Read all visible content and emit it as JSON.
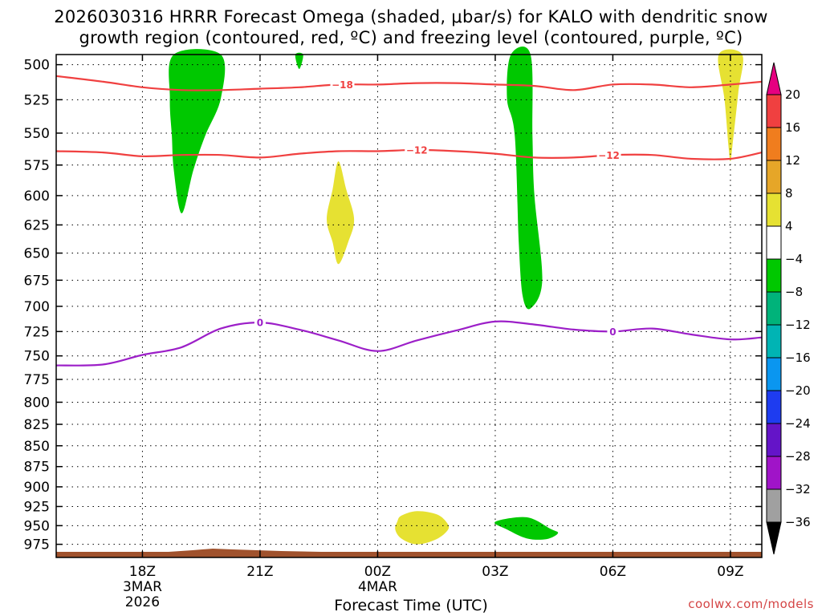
{
  "title_line1": "2026030316 HRRR Forecast Omega (shaded, μbar/s) for KALO with dendritic snow",
  "title_line2": "growth region (contoured, red, ºC) and freezing level (contoured, purple, ºC)",
  "credit": "coolwx.com/models",
  "chart_data": {
    "type": "time-height cross section",
    "xlabel": "Forecast Time (UTC)",
    "x_ticks": [
      {
        "h": 2,
        "labels": [
          "18Z",
          "3MAR",
          "2026"
        ]
      },
      {
        "h": 5,
        "labels": [
          "21Z"
        ]
      },
      {
        "h": 8,
        "labels": [
          "00Z",
          "4MAR"
        ]
      },
      {
        "h": 11,
        "labels": [
          "03Z"
        ]
      },
      {
        "h": 14,
        "labels": [
          "06Z"
        ]
      },
      {
        "h": 17,
        "labels": [
          "09Z"
        ]
      }
    ],
    "xlim": [
      -0.2,
      17.8
    ],
    "ylim_hPa": [
      493,
      993
    ],
    "y_ticks": [
      500,
      525,
      550,
      575,
      600,
      625,
      650,
      675,
      700,
      725,
      750,
      775,
      800,
      825,
      850,
      875,
      900,
      925,
      950,
      975
    ],
    "grid": true,
    "colorbar": {
      "ticks": [
        "20",
        "16",
        "12",
        "8",
        "4",
        "−4",
        "−8",
        "−12",
        "−16",
        "−20",
        "−24",
        "−28",
        "−32",
        "−36"
      ],
      "colors": [
        "#e60080",
        "#f04040",
        "#f07d1e",
        "#e6a628",
        "#e6e132",
        "#ffffff",
        "#00c800",
        "#00b37a",
        "#00b4b4",
        "#0a96f0",
        "#1e3cf0",
        "#6414c8",
        "#a014c8",
        "#a0a0a0",
        "#000000"
      ]
    },
    "contours": [
      {
        "name": "-18",
        "color": "#f04040",
        "points": [
          [
            -0.2,
            508
          ],
          [
            1,
            512
          ],
          [
            2,
            516
          ],
          [
            3,
            518
          ],
          [
            4,
            518
          ],
          [
            5,
            517
          ],
          [
            6,
            516
          ],
          [
            7,
            514
          ],
          [
            8,
            514
          ],
          [
            9,
            513
          ],
          [
            10,
            513
          ],
          [
            11,
            514
          ],
          [
            12,
            515
          ],
          [
            13,
            518
          ],
          [
            14,
            514
          ],
          [
            15,
            514
          ],
          [
            16,
            516
          ],
          [
            17,
            514
          ],
          [
            17.8,
            512
          ]
        ],
        "labels": [
          {
            "x": 7.1,
            "text": "−18"
          }
        ]
      },
      {
        "name": "-12",
        "color": "#f04040",
        "points": [
          [
            -0.2,
            564
          ],
          [
            1,
            565
          ],
          [
            2,
            568
          ],
          [
            3,
            567
          ],
          [
            4,
            567
          ],
          [
            5,
            569
          ],
          [
            6,
            566
          ],
          [
            7,
            564
          ],
          [
            8,
            564
          ],
          [
            9,
            563
          ],
          [
            10,
            564
          ],
          [
            11,
            566
          ],
          [
            12,
            569
          ],
          [
            13,
            569
          ],
          [
            14,
            567
          ],
          [
            15,
            567
          ],
          [
            16,
            570
          ],
          [
            17,
            570
          ],
          [
            17.8,
            565
          ]
        ],
        "labels": [
          {
            "x": 9.0,
            "text": "−12"
          },
          {
            "x": 13.9,
            "text": "−12"
          }
        ]
      },
      {
        "name": "0",
        "color": "#9c1fc8",
        "points": [
          [
            -0.2,
            760
          ],
          [
            1,
            759
          ],
          [
            2,
            749
          ],
          [
            3,
            741
          ],
          [
            4,
            722
          ],
          [
            5,
            716
          ],
          [
            6,
            723
          ],
          [
            7,
            734
          ],
          [
            8,
            745
          ],
          [
            9,
            734
          ],
          [
            10,
            724
          ],
          [
            11,
            715
          ],
          [
            12,
            718
          ],
          [
            13,
            723
          ],
          [
            14,
            725
          ],
          [
            15,
            722
          ],
          [
            16,
            728
          ],
          [
            17,
            733
          ],
          [
            17.8,
            731
          ]
        ],
        "labels": [
          {
            "x": 5.0,
            "text": "0"
          },
          {
            "x": 14.0,
            "text": "0"
          }
        ]
      }
    ],
    "shaded_regions": [
      {
        "name": "green-1",
        "color": "#00c800",
        "points": [
          [
            2.8,
            493
          ],
          [
            4.0,
            493
          ],
          [
            4.0,
            524
          ],
          [
            3.6,
            552
          ],
          [
            3.3,
            579
          ],
          [
            3.0,
            615
          ],
          [
            2.8,
            579
          ],
          [
            2.75,
            552
          ],
          [
            2.7,
            524
          ]
        ]
      },
      {
        "name": "green-2",
        "color": "#00c800",
        "points": [
          [
            5.9,
            493
          ],
          [
            6.1,
            493
          ],
          [
            6.0,
            503
          ]
        ]
      },
      {
        "name": "green-3",
        "color": "#00c800",
        "points": [
          [
            11.4,
            493
          ],
          [
            11.9,
            493
          ],
          [
            11.95,
            552
          ],
          [
            12.0,
            600
          ],
          [
            12.2,
            675
          ],
          [
            11.9,
            702
          ],
          [
            11.7,
            690
          ],
          [
            11.6,
            640
          ],
          [
            11.5,
            552
          ],
          [
            11.3,
            524
          ]
        ]
      },
      {
        "name": "green-4",
        "color": "#00c800",
        "points": [
          [
            11.0,
            945
          ],
          [
            11.8,
            939
          ],
          [
            12.4,
            954
          ],
          [
            12.6,
            960
          ],
          [
            12.3,
            968
          ],
          [
            11.8,
            967
          ],
          [
            11.3,
            955
          ]
        ]
      },
      {
        "name": "yellow-1",
        "color": "#e6e132",
        "points": [
          [
            7.0,
            572
          ],
          [
            7.2,
            595
          ],
          [
            7.4,
            620
          ],
          [
            7.25,
            640
          ],
          [
            7.0,
            660
          ],
          [
            6.85,
            640
          ],
          [
            6.7,
            620
          ],
          [
            6.85,
            595
          ]
        ]
      },
      {
        "name": "yellow-2",
        "color": "#e6e132",
        "points": [
          [
            8.6,
            937
          ],
          [
            9.0,
            931
          ],
          [
            9.5,
            935
          ],
          [
            9.75,
            945
          ],
          [
            9.8,
            955
          ],
          [
            9.5,
            968
          ],
          [
            9.0,
            975
          ],
          [
            8.6,
            967
          ],
          [
            8.45,
            955
          ],
          [
            8.5,
            945
          ]
        ]
      },
      {
        "name": "yellow-3",
        "color": "#e6e132",
        "points": [
          [
            16.7,
            493
          ],
          [
            17.3,
            493
          ],
          [
            17.2,
            520
          ],
          [
            17.05,
            560
          ],
          [
            17.0,
            572
          ],
          [
            16.95,
            560
          ],
          [
            16.85,
            525
          ]
        ]
      }
    ]
  }
}
